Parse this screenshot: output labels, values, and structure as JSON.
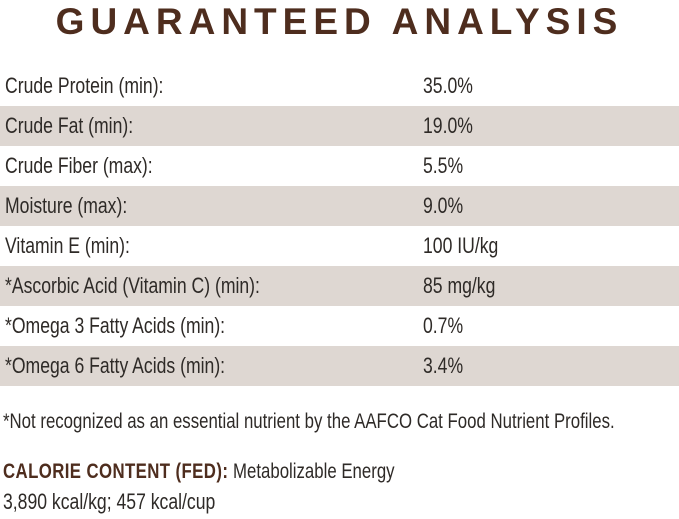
{
  "title": "GUARANTEED ANALYSIS",
  "colors": {
    "heading_brown": "#4e2d1e",
    "row_stripe_beige": "#ded7d2",
    "body_text": "#2e2a27",
    "background": "#ffffff"
  },
  "analysis_table": {
    "rows": [
      {
        "label": "Crude Protein (min):",
        "value": "35.0%"
      },
      {
        "label": "Crude Fat (min):",
        "value": "19.0%"
      },
      {
        "label": "Crude Fiber (max):",
        "value": "5.5%"
      },
      {
        "label": "Moisture (max):",
        "value": "9.0%"
      },
      {
        "label": "Vitamin E (min):",
        "value": "100 IU/kg"
      },
      {
        "label": "*Ascorbic Acid (Vitamin C) (min):",
        "value": "85 mg/kg"
      },
      {
        "label": "*Omega 3 Fatty Acids (min):",
        "value": "0.7%"
      },
      {
        "label": "*Omega 6 Fatty Acids (min):",
        "value": "3.4%"
      }
    ]
  },
  "footnote": "*Not recognized as an essential nutrient by the AAFCO Cat Food Nutrient Profiles.",
  "calorie_content": {
    "label": "CALORIE CONTENT (FED):",
    "description": "Metabolizable Energy",
    "values": "3,890 kcal/kg; 457 kcal/cup"
  }
}
